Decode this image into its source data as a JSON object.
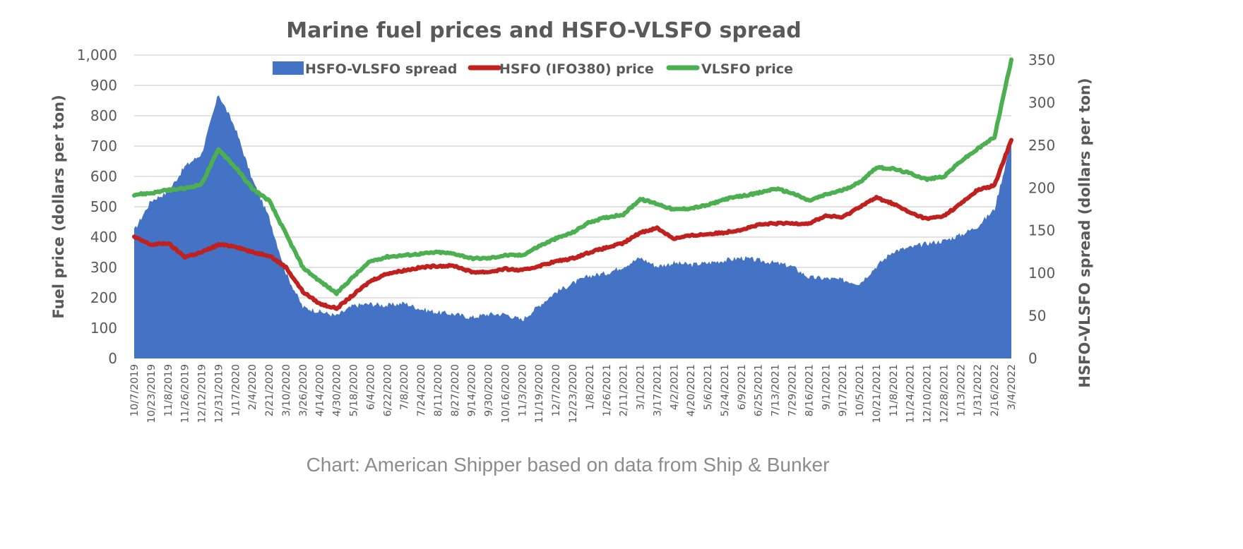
{
  "chart_data": {
    "type": "line",
    "title": "Marine fuel prices and HSFO-VLSFO spread",
    "source": "Chart: American Shipper based on data from Ship & Bunker",
    "ylabel_left": "Fuel price  (dollars per ton)",
    "ylabel_right": "HSFO-VLSFO spread  (dollars per ton)",
    "xlabel": "",
    "ylim_left": [
      0,
      1000
    ],
    "ylim_right": [
      0,
      350
    ],
    "yticks_left": [
      "0",
      "100",
      "200",
      "300",
      "400",
      "500",
      "600",
      "700",
      "800",
      "900",
      "1,000"
    ],
    "yticks_right": [
      "0",
      "50",
      "100",
      "150",
      "200",
      "250",
      "300",
      "350"
    ],
    "grid": true,
    "legend_position": "top-center",
    "colors": {
      "spread": "#4472c4",
      "hsfo": "#c0211f",
      "vlsfo": "#4caf50",
      "text": "#595959",
      "grid": "#d9d9d9"
    },
    "categories": [
      "10/7/2019",
      "10/23/2019",
      "11/8/2019",
      "11/26/2019",
      "12/12/2019",
      "12/31/2019",
      "1/17/2020",
      "2/4/2020",
      "2/21/2020",
      "3/10/2020",
      "3/26/2020",
      "4/14/2020",
      "4/30/2020",
      "5/18/2020",
      "6/4/2020",
      "6/22/2020",
      "7/8/2020",
      "7/24/2020",
      "8/11/2020",
      "8/27/2020",
      "9/14/2020",
      "9/30/2020",
      "10/16/2020",
      "11/3/2020",
      "11/19/2020",
      "12/7/2020",
      "12/23/2020",
      "1/8/2021",
      "1/26/2021",
      "2/11/2021",
      "3/1/2021",
      "3/17/2021",
      "4/2/2021",
      "4/20/2021",
      "5/6/2021",
      "5/24/2021",
      "6/9/2021",
      "6/25/2021",
      "7/13/2021",
      "7/29/2021",
      "8/16/2021",
      "9/1/2021",
      "9/17/2021",
      "10/5/2021",
      "10/21/2021",
      "11/8/2021",
      "11/24/2021",
      "12/10/2021",
      "12/28/2021",
      "1/13/2022",
      "1/31/2022",
      "2/16/2022",
      "3/4/2022"
    ],
    "series": [
      {
        "name": "HSFO-VLSFO spread",
        "type": "area",
        "axis": "right",
        "values": [
          150,
          185,
          195,
          225,
          240,
          310,
          270,
          210,
          165,
          100,
          60,
          55,
          50,
          62,
          64,
          62,
          65,
          58,
          54,
          52,
          48,
          52,
          52,
          45,
          62,
          78,
          88,
          97,
          100,
          108,
          118,
          108,
          112,
          110,
          112,
          115,
          118,
          115,
          112,
          108,
          95,
          94,
          92,
          88,
          108,
          126,
          130,
          135,
          138,
          145,
          155,
          175,
          255
        ]
      },
      {
        "name": "HSFO (IFO380) price",
        "type": "line",
        "axis": "left",
        "values": [
          400,
          375,
          380,
          335,
          350,
          375,
          370,
          350,
          340,
          300,
          220,
          180,
          165,
          210,
          255,
          280,
          290,
          300,
          305,
          305,
          285,
          285,
          295,
          290,
          305,
          320,
          330,
          350,
          365,
          380,
          415,
          430,
          395,
          405,
          410,
          415,
          425,
          440,
          445,
          445,
          445,
          470,
          465,
          500,
          530,
          510,
          480,
          460,
          470,
          510,
          555,
          570,
          720
        ]
      },
      {
        "name": "VLSFO price",
        "type": "line",
        "axis": "left",
        "values": [
          540,
          545,
          555,
          560,
          575,
          690,
          630,
          560,
          520,
          410,
          300,
          255,
          215,
          270,
          320,
          335,
          340,
          345,
          350,
          345,
          330,
          330,
          340,
          340,
          370,
          395,
          415,
          450,
          465,
          475,
          525,
          510,
          490,
          495,
          505,
          525,
          535,
          545,
          560,
          545,
          520,
          540,
          555,
          580,
          630,
          625,
          610,
          590,
          600,
          650,
          690,
          730,
          985
        ]
      }
    ]
  }
}
